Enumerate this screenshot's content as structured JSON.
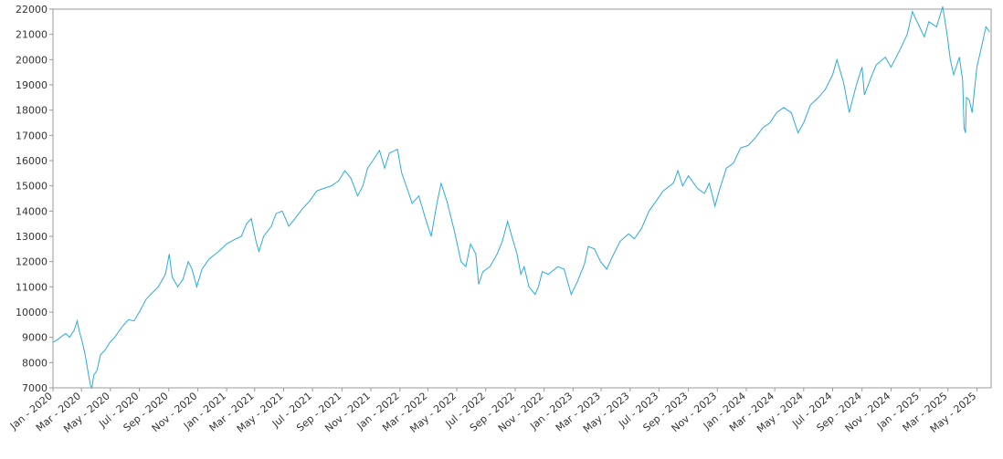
{
  "chart_data": {
    "type": "line",
    "title": "",
    "xlabel": "",
    "ylabel": "",
    "series_color": "#29abe2",
    "grid": false,
    "legend": "none",
    "ylim": [
      7000,
      22000
    ],
    "xlim": [
      "2020-01-01",
      "2025-05-31"
    ],
    "y_ticks": [
      7000,
      8000,
      9000,
      10000,
      11000,
      12000,
      13000,
      14000,
      15000,
      16000,
      17000,
      18000,
      19000,
      20000,
      21000,
      22000
    ],
    "x_ticks": [
      {
        "date": "2020-01-01",
        "label": "Jan - 2020"
      },
      {
        "date": "2020-03-01",
        "label": "Mar - 2020"
      },
      {
        "date": "2020-05-01",
        "label": "May - 2020"
      },
      {
        "date": "2020-07-01",
        "label": "Jul - 2020"
      },
      {
        "date": "2020-09-01",
        "label": "Sep - 2020"
      },
      {
        "date": "2020-11-01",
        "label": "Nov - 2020"
      },
      {
        "date": "2021-01-01",
        "label": "Jan - 2021"
      },
      {
        "date": "2021-03-01",
        "label": "Mar - 2021"
      },
      {
        "date": "2021-05-01",
        "label": "May - 2021"
      },
      {
        "date": "2021-07-01",
        "label": "Jul - 2021"
      },
      {
        "date": "2021-09-01",
        "label": "Sep - 2021"
      },
      {
        "date": "2021-11-01",
        "label": "Nov - 2021"
      },
      {
        "date": "2022-01-01",
        "label": "Jan - 2022"
      },
      {
        "date": "2022-03-01",
        "label": "Mar - 2022"
      },
      {
        "date": "2022-05-01",
        "label": "May - 2022"
      },
      {
        "date": "2022-07-01",
        "label": "Jul - 2022"
      },
      {
        "date": "2022-09-01",
        "label": "Sep - 2022"
      },
      {
        "date": "2022-11-01",
        "label": "Nov - 2022"
      },
      {
        "date": "2023-01-01",
        "label": "Jan - 2023"
      },
      {
        "date": "2023-03-01",
        "label": "Mar - 2023"
      },
      {
        "date": "2023-05-01",
        "label": "May - 2023"
      },
      {
        "date": "2023-07-01",
        "label": "Jul - 2023"
      },
      {
        "date": "2023-09-01",
        "label": "Sep - 2023"
      },
      {
        "date": "2023-11-01",
        "label": "Nov - 2023"
      },
      {
        "date": "2024-01-01",
        "label": "Jan - 2024"
      },
      {
        "date": "2024-03-01",
        "label": "Mar - 2024"
      },
      {
        "date": "2024-05-01",
        "label": "May - 2024"
      },
      {
        "date": "2024-07-01",
        "label": "Jul - 2024"
      },
      {
        "date": "2024-09-01",
        "label": "Sep - 2024"
      },
      {
        "date": "2024-11-01",
        "label": "Nov - 2024"
      },
      {
        "date": "2025-01-01",
        "label": "Jan - 2025"
      },
      {
        "date": "2025-03-01",
        "label": "Mar - 2025"
      },
      {
        "date": "2025-05-01",
        "label": "May - 2025"
      }
    ],
    "series": [
      {
        "points": [
          [
            "2020-01-01",
            8800
          ],
          [
            "2020-01-10",
            8900
          ],
          [
            "2020-01-20",
            9050
          ],
          [
            "2020-01-28",
            9150
          ],
          [
            "2020-02-05",
            9000
          ],
          [
            "2020-02-15",
            9300
          ],
          [
            "2020-02-21",
            9650
          ],
          [
            "2020-02-26",
            9200
          ],
          [
            "2020-03-03",
            8800
          ],
          [
            "2020-03-09",
            8300
          ],
          [
            "2020-03-16",
            7500
          ],
          [
            "2020-03-20",
            7100
          ],
          [
            "2020-03-23",
            7000
          ],
          [
            "2020-03-27",
            7500
          ],
          [
            "2020-04-03",
            7700
          ],
          [
            "2020-04-10",
            8300
          ],
          [
            "2020-04-20",
            8500
          ],
          [
            "2020-04-30",
            8800
          ],
          [
            "2020-05-10",
            9000
          ],
          [
            "2020-05-25",
            9400
          ],
          [
            "2020-06-08",
            9700
          ],
          [
            "2020-06-20",
            9650
          ],
          [
            "2020-07-01",
            10000
          ],
          [
            "2020-07-15",
            10500
          ],
          [
            "2020-07-25",
            10700
          ],
          [
            "2020-08-10",
            11000
          ],
          [
            "2020-08-25",
            11500
          ],
          [
            "2020-09-02",
            12300
          ],
          [
            "2020-09-08",
            11400
          ],
          [
            "2020-09-20",
            11000
          ],
          [
            "2020-10-01",
            11300
          ],
          [
            "2020-10-12",
            12000
          ],
          [
            "2020-10-20",
            11700
          ],
          [
            "2020-10-30",
            11000
          ],
          [
            "2020-11-10",
            11700
          ],
          [
            "2020-11-25",
            12100
          ],
          [
            "2020-12-15",
            12400
          ],
          [
            "2021-01-01",
            12700
          ],
          [
            "2021-01-20",
            12900
          ],
          [
            "2021-02-01",
            13000
          ],
          [
            "2021-02-12",
            13500
          ],
          [
            "2021-02-22",
            13700
          ],
          [
            "2021-03-04",
            12800
          ],
          [
            "2021-03-10",
            12400
          ],
          [
            "2021-03-20",
            13000
          ],
          [
            "2021-04-05",
            13400
          ],
          [
            "2021-04-15",
            13900
          ],
          [
            "2021-04-28",
            14000
          ],
          [
            "2021-05-12",
            13400
          ],
          [
            "2021-05-25",
            13700
          ],
          [
            "2021-06-10",
            14100
          ],
          [
            "2021-06-25",
            14400
          ],
          [
            "2021-07-10",
            14800
          ],
          [
            "2021-07-25",
            14900
          ],
          [
            "2021-08-10",
            15000
          ],
          [
            "2021-08-25",
            15200
          ],
          [
            "2021-09-07",
            15600
          ],
          [
            "2021-09-20",
            15300
          ],
          [
            "2021-10-04",
            14600
          ],
          [
            "2021-10-15",
            15000
          ],
          [
            "2021-10-25",
            15700
          ],
          [
            "2021-11-05",
            16000
          ],
          [
            "2021-11-19",
            16400
          ],
          [
            "2021-11-30",
            15700
          ],
          [
            "2021-12-10",
            16300
          ],
          [
            "2021-12-27",
            16450
          ],
          [
            "2022-01-05",
            15500
          ],
          [
            "2022-01-20",
            14700
          ],
          [
            "2022-01-27",
            14300
          ],
          [
            "2022-02-10",
            14600
          ],
          [
            "2022-02-24",
            13700
          ],
          [
            "2022-03-08",
            13000
          ],
          [
            "2022-03-20",
            14300
          ],
          [
            "2022-03-29",
            15100
          ],
          [
            "2022-04-10",
            14400
          ],
          [
            "2022-04-26",
            13200
          ],
          [
            "2022-05-10",
            12000
          ],
          [
            "2022-05-20",
            11800
          ],
          [
            "2022-05-30",
            12700
          ],
          [
            "2022-06-10",
            12300
          ],
          [
            "2022-06-16",
            11100
          ],
          [
            "2022-06-25",
            11600
          ],
          [
            "2022-07-10",
            11800
          ],
          [
            "2022-07-25",
            12300
          ],
          [
            "2022-08-05",
            12800
          ],
          [
            "2022-08-16",
            13600
          ],
          [
            "2022-08-25",
            13000
          ],
          [
            "2022-09-05",
            12300
          ],
          [
            "2022-09-13",
            11500
          ],
          [
            "2022-09-20",
            11800
          ],
          [
            "2022-09-30",
            11000
          ],
          [
            "2022-10-13",
            10700
          ],
          [
            "2022-10-20",
            11000
          ],
          [
            "2022-10-28",
            11600
          ],
          [
            "2022-11-10",
            11500
          ],
          [
            "2022-11-30",
            11800
          ],
          [
            "2022-12-13",
            11700
          ],
          [
            "2022-12-28",
            10700
          ],
          [
            "2023-01-10",
            11200
          ],
          [
            "2023-01-25",
            11900
          ],
          [
            "2023-02-02",
            12600
          ],
          [
            "2023-02-15",
            12500
          ],
          [
            "2023-02-28",
            12000
          ],
          [
            "2023-03-13",
            11700
          ],
          [
            "2023-03-25",
            12200
          ],
          [
            "2023-04-10",
            12800
          ],
          [
            "2023-04-28",
            13100
          ],
          [
            "2023-05-10",
            12900
          ],
          [
            "2023-05-25",
            13300
          ],
          [
            "2023-06-10",
            14000
          ],
          [
            "2023-06-25",
            14400
          ],
          [
            "2023-07-10",
            14800
          ],
          [
            "2023-07-31",
            15100
          ],
          [
            "2023-08-10",
            15600
          ],
          [
            "2023-08-20",
            15000
          ],
          [
            "2023-09-01",
            15400
          ],
          [
            "2023-09-20",
            14900
          ],
          [
            "2023-10-05",
            14700
          ],
          [
            "2023-10-15",
            15100
          ],
          [
            "2023-10-27",
            14200
          ],
          [
            "2023-11-05",
            14800
          ],
          [
            "2023-11-20",
            15700
          ],
          [
            "2023-12-05",
            15900
          ],
          [
            "2023-12-20",
            16500
          ],
          [
            "2024-01-05",
            16600
          ],
          [
            "2024-01-20",
            16900
          ],
          [
            "2024-02-05",
            17300
          ],
          [
            "2024-02-20",
            17500
          ],
          [
            "2024-03-05",
            17900
          ],
          [
            "2024-03-20",
            18100
          ],
          [
            "2024-04-05",
            17900
          ],
          [
            "2024-04-19",
            17100
          ],
          [
            "2024-05-01",
            17500
          ],
          [
            "2024-05-15",
            18200
          ],
          [
            "2024-06-01",
            18500
          ],
          [
            "2024-06-15",
            18800
          ],
          [
            "2024-07-01",
            19400
          ],
          [
            "2024-07-10",
            20000
          ],
          [
            "2024-07-24",
            19100
          ],
          [
            "2024-08-05",
            17900
          ],
          [
            "2024-08-20",
            19000
          ],
          [
            "2024-09-01",
            19700
          ],
          [
            "2024-09-06",
            18600
          ],
          [
            "2024-09-20",
            19300
          ],
          [
            "2024-10-01",
            19800
          ],
          [
            "2024-10-20",
            20100
          ],
          [
            "2024-11-01",
            19700
          ],
          [
            "2024-11-20",
            20400
          ],
          [
            "2024-12-05",
            21000
          ],
          [
            "2024-12-16",
            21900
          ],
          [
            "2024-12-31",
            21300
          ],
          [
            "2025-01-10",
            20900
          ],
          [
            "2025-01-20",
            21500
          ],
          [
            "2025-02-05",
            21300
          ],
          [
            "2025-02-18",
            22100
          ],
          [
            "2025-02-28",
            20900
          ],
          [
            "2025-03-06",
            20000
          ],
          [
            "2025-03-13",
            19400
          ],
          [
            "2025-03-25",
            20100
          ],
          [
            "2025-04-01",
            19200
          ],
          [
            "2025-04-04",
            17300
          ],
          [
            "2025-04-07",
            17100
          ],
          [
            "2025-04-09",
            18500
          ],
          [
            "2025-04-15",
            18400
          ],
          [
            "2025-04-21",
            17900
          ],
          [
            "2025-05-01",
            19700
          ],
          [
            "2025-05-12",
            20600
          ],
          [
            "2025-05-20",
            21300
          ],
          [
            "2025-05-28",
            21100
          ]
        ]
      }
    ]
  }
}
